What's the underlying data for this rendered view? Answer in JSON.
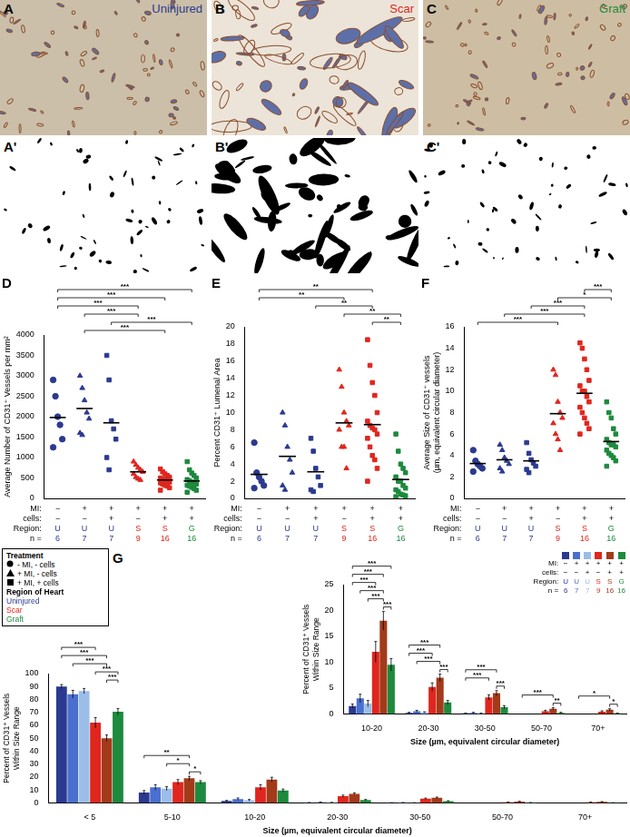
{
  "images": [
    {
      "letter": "A",
      "label": "Uninjured",
      "color": "#2b3a8f"
    },
    {
      "letter": "B",
      "label": "Scar",
      "color": "#e0261e"
    },
    {
      "letter": "C",
      "label": "Graft",
      "color": "#1d8a3e"
    },
    {
      "letter": "A'"
    },
    {
      "letter": "B'"
    },
    {
      "letter": "C'"
    }
  ],
  "treatment_legend": {
    "title": "Treatment",
    "items": [
      {
        "marker": "circle",
        "label": "- MI, - cells"
      },
      {
        "marker": "triangle",
        "label": "+ MI, - cells"
      },
      {
        "marker": "rect",
        "label": "+ MI, + cells"
      }
    ]
  },
  "region_legend": {
    "title": "Region of Heart",
    "items": [
      {
        "label": "Uninjured",
        "color": "#2b3a8f"
      },
      {
        "label": "Scar",
        "color": "#e0261e"
      },
      {
        "label": "Graft",
        "color": "#1d8a3e"
      }
    ]
  },
  "chart_data": [
    {
      "letter": "D",
      "type": "dot",
      "tick_labels": "y",
      "y_label": "Average Number of CD31⁺ Vessels per mm²",
      "ylim": [
        0,
        4000
      ],
      "yticks": [
        0,
        500,
        1000,
        1500,
        2000,
        2500,
        3000,
        3500,
        4000
      ],
      "series": [
        {
          "color": "#2b3a8f",
          "marker": "circle",
          "values": [
            2900,
            2500,
            2000,
            1800,
            1450,
            1250
          ],
          "mean": 1980
        },
        {
          "color": "#2b3a8f",
          "marker": "triangle",
          "values": [
            3000,
            2700,
            2400,
            2100,
            1950,
            1600,
            1550
          ],
          "mean": 2200
        },
        {
          "color": "#2b3a8f",
          "marker": "rect",
          "values": [
            3500,
            2900,
            1900,
            1700,
            1450,
            1000,
            700
          ],
          "mean": 1850
        },
        {
          "color": "#e0261e",
          "marker": "triangle",
          "values": [
            900,
            820,
            750,
            700,
            650,
            600,
            520,
            480,
            450
          ],
          "mean": 650
        },
        {
          "color": "#e0261e",
          "marker": "rect",
          "values": [
            720,
            650,
            600,
            560,
            520,
            500,
            480,
            450,
            430,
            400,
            380,
            350,
            320,
            300,
            260,
            200
          ],
          "mean": 450
        },
        {
          "color": "#1d8a3e",
          "marker": "rect",
          "values": [
            900,
            700,
            620,
            560,
            500,
            460,
            430,
            400,
            380,
            350,
            320,
            300,
            270,
            240,
            200,
            150
          ],
          "mean": 425
        }
      ],
      "table": [
        {
          "label": "MI:",
          "cells": [
            "−",
            "+",
            "+",
            "+",
            "+",
            "+"
          ]
        },
        {
          "label": "cells:",
          "cells": [
            "−",
            "−",
            "+",
            "−",
            "+",
            "+"
          ]
        },
        {
          "label": "Region:",
          "cells": [
            "U",
            "U",
            "U",
            "S",
            "S",
            "G"
          ]
        },
        {
          "label": "n =",
          "cells": [
            6,
            7,
            7,
            9,
            16,
            16
          ]
        }
      ],
      "significance": [
        {
          "from": 1,
          "to": 4,
          "label": "***"
        },
        {
          "from": 2,
          "to": 5,
          "label": "***"
        },
        {
          "from": 1,
          "to": 3,
          "label": "***"
        },
        {
          "from": 0,
          "to": 3,
          "label": "***"
        },
        {
          "from": 0,
          "to": 4,
          "label": "***"
        },
        {
          "from": 0,
          "to": 5,
          "label": "***"
        }
      ]
    },
    {
      "letter": "E",
      "type": "dot",
      "tick_labels": "y",
      "y_label": "Percent CD31⁺ Lumenal Area",
      "ylim": [
        0,
        20
      ],
      "yticks": [
        0,
        2,
        4,
        6,
        8,
        10,
        12,
        14,
        16,
        18,
        20
      ],
      "series": [
        {
          "color": "#2b3a8f",
          "marker": "circle",
          "values": [
            6.5,
            3,
            2.5,
            2,
            1.5,
            1.2
          ],
          "mean": 2.8
        },
        {
          "color": "#2b3a8f",
          "marker": "triangle",
          "values": [
            10,
            8.5,
            6,
            4.5,
            3,
            1.5,
            1
          ],
          "mean": 4.9
        },
        {
          "color": "#2b3a8f",
          "marker": "rect",
          "values": [
            7,
            5.5,
            3.5,
            2.5,
            1.5,
            1,
            0.8
          ],
          "mean": 3.1
        },
        {
          "color": "#e0261e",
          "marker": "triangle",
          "values": [
            15,
            13,
            10,
            9,
            8.5,
            8,
            6,
            6,
            3.5
          ],
          "mean": 8.8
        },
        {
          "color": "#e0261e",
          "marker": "rect",
          "values": [
            18.5,
            15.5,
            13.5,
            12,
            10,
            9,
            8.5,
            8.2,
            8,
            7.5,
            7,
            6,
            5,
            4.5,
            3.5,
            2
          ],
          "mean": 8.6
        },
        {
          "color": "#1d8a3e",
          "marker": "rect",
          "values": [
            7.5,
            5.5,
            4,
            3.5,
            3,
            2.5,
            2,
            2,
            1.5,
            1.2,
            1,
            0.8,
            0.5,
            0.4,
            0.3,
            0.2
          ],
          "mean": 2.2
        }
      ],
      "table": [
        {
          "label": "MI:",
          "cells": [
            "−",
            "+",
            "+",
            "+",
            "+",
            "+"
          ]
        },
        {
          "label": "cells:",
          "cells": [
            "−",
            "−",
            "+",
            "−",
            "+",
            "+"
          ]
        },
        {
          "label": "Region:",
          "cells": [
            "U",
            "U",
            "U",
            "S",
            "S",
            "G"
          ]
        },
        {
          "label": "n =",
          "cells": [
            6,
            7,
            7,
            9,
            16,
            16
          ]
        }
      ],
      "significance": [
        {
          "from": 4,
          "to": 5,
          "label": "**"
        },
        {
          "from": 3,
          "to": 5,
          "label": "**"
        },
        {
          "from": 2,
          "to": 4,
          "label": "**"
        },
        {
          "from": 0,
          "to": 3,
          "label": "**"
        },
        {
          "from": 0,
          "to": 4,
          "label": "**"
        }
      ]
    },
    {
      "letter": "F",
      "type": "dot",
      "tick_labels": "y",
      "y_label": "Average Size of CD31⁺ vessels (µm, equivalent circular diameter)",
      "ylim": [
        0,
        16
      ],
      "yticks": [
        0,
        2,
        4,
        6,
        8,
        10,
        12,
        14,
        16
      ],
      "series": [
        {
          "color": "#2b3a8f",
          "marker": "circle",
          "values": [
            4.5,
            3.5,
            3.2,
            3,
            2.8,
            2.5
          ],
          "mean": 3.25
        },
        {
          "color": "#2b3a8f",
          "marker": "triangle",
          "values": [
            5,
            4.5,
            3.8,
            3.5,
            3.2,
            2.8,
            2.5
          ],
          "mean": 3.6
        },
        {
          "color": "#2b3a8f",
          "marker": "rect",
          "values": [
            5.2,
            4.2,
            3.6,
            3.3,
            3,
            2.7,
            2.4
          ],
          "mean": 3.5
        },
        {
          "color": "#e0261e",
          "marker": "triangle",
          "values": [
            12,
            11.5,
            9,
            8,
            7.5,
            7,
            6,
            5.5,
            4.5
          ],
          "mean": 7.9
        },
        {
          "color": "#e0261e",
          "marker": "rect",
          "values": [
            14.5,
            14,
            13,
            12,
            11,
            10.5,
            10,
            10,
            9.5,
            9,
            8.5,
            8,
            7.5,
            7,
            6.5,
            6
          ],
          "mean": 9.8
        },
        {
          "color": "#1d8a3e",
          "marker": "rect",
          "values": [
            9,
            8,
            7.5,
            6.5,
            6,
            5.5,
            5.2,
            5,
            5,
            4.8,
            4.5,
            4.2,
            4,
            3.8,
            3.5,
            3
          ],
          "mean": 5.3
        }
      ],
      "table": [
        {
          "label": "MI:",
          "cells": [
            "−",
            "+",
            "+",
            "+",
            "+",
            "+"
          ]
        },
        {
          "label": "cells:",
          "cells": [
            "−",
            "−",
            "+",
            "−",
            "+",
            "+"
          ]
        },
        {
          "label": "Region:",
          "cells": [
            "U",
            "U",
            "U",
            "S",
            "S",
            "G"
          ]
        },
        {
          "label": "n =",
          "cells": [
            6,
            7,
            7,
            9,
            16,
            16
          ]
        }
      ],
      "significance": [
        {
          "from": 0,
          "to": 3,
          "label": "***"
        },
        {
          "from": 1,
          "to": 4,
          "label": "***"
        },
        {
          "from": 2,
          "to": 4,
          "label": "***"
        },
        {
          "from": 3,
          "to": 5,
          "label": "*"
        },
        {
          "from": 4,
          "to": 5,
          "label": "***"
        }
      ]
    },
    {
      "letter": "G",
      "type": "bar",
      "y_label": "Percent of CD31⁺ Vessels Within Size Range",
      "x_label": "Size (µm, equivalent circular diameter)",
      "categories": [
        "< 5",
        "5-10",
        "10-20",
        "20-30",
        "30-50",
        "50-70",
        "70+"
      ],
      "ylim": [
        0,
        100
      ],
      "yticks": [
        0,
        10,
        20,
        30,
        40,
        50,
        60,
        70,
        80,
        90,
        100
      ],
      "series": [
        {
          "color": "#2b3990",
          "values": [
            90,
            8,
            1.5,
            0.2,
            0.1,
            0,
            0
          ],
          "errors": [
            1.5,
            1.5,
            0.4,
            0.1,
            0.05,
            0,
            0
          ]
        },
        {
          "color": "#4a6fcf",
          "values": [
            84,
            12,
            3,
            0.5,
            0.2,
            0,
            0
          ],
          "errors": [
            3,
            2,
            0.8,
            0.2,
            0.1,
            0,
            0
          ]
        },
        {
          "color": "#9bbde8",
          "values": [
            86.5,
            11,
            2,
            0.3,
            0.1,
            0,
            0
          ],
          "errors": [
            2,
            1.5,
            0.6,
            0.1,
            0.05,
            0,
            0
          ]
        },
        {
          "color": "#e0261e",
          "values": [
            62,
            16,
            12,
            5.2,
            3.2,
            0.5,
            0.4
          ],
          "errors": [
            4,
            2,
            2,
            0.8,
            0.5,
            0.2,
            0.2
          ]
        },
        {
          "color": "#a33a1a",
          "values": [
            50,
            19,
            18,
            7,
            4,
            1,
            0.8
          ],
          "errors": [
            2.5,
            1.5,
            1.8,
            0.7,
            0.5,
            0.2,
            0.2
          ]
        },
        {
          "color": "#1d8a3e",
          "values": [
            70.5,
            16,
            9.5,
            2.2,
            1.3,
            0.2,
            0.1
          ],
          "errors": [
            2.5,
            1.2,
            1.2,
            0.4,
            0.3,
            0.1,
            0.05
          ]
        }
      ],
      "significance": [
        {
          "category": 0,
          "from": 4,
          "to": 5,
          "label": "***"
        },
        {
          "category": 0,
          "from": 3,
          "to": 5,
          "label": "***"
        },
        {
          "category": 0,
          "from": 1,
          "to": 4,
          "label": "***"
        },
        {
          "category": 0,
          "from": 0,
          "to": 4,
          "label": "***"
        },
        {
          "category": 0,
          "from": 0,
          "to": 3,
          "label": "***"
        },
        {
          "category": 1,
          "from": 4,
          "to": 5,
          "label": "*"
        },
        {
          "category": 1,
          "from": 2,
          "to": 4,
          "label": "*"
        },
        {
          "category": 1,
          "from": 0,
          "to": 4,
          "label": "**"
        }
      ]
    },
    {
      "type": "bar",
      "y_label": "Percent of CD31⁺ Vessels Within Size Range",
      "x_label": "Size (µm, equivalent circular diameter)",
      "categories": [
        "10-20",
        "20-30",
        "30-50",
        "50-70",
        "70+"
      ],
      "ylim": [
        0,
        25
      ],
      "yticks": [
        0,
        5,
        10,
        15,
        20,
        25
      ],
      "series": [
        {
          "color": "#2b3990",
          "values": [
            1.5,
            0.2,
            0.1,
            0,
            0
          ],
          "errors": [
            0.4,
            0.1,
            0.05,
            0,
            0
          ]
        },
        {
          "color": "#4a6fcf",
          "values": [
            3,
            0.5,
            0.2,
            0,
            0
          ],
          "errors": [
            0.8,
            0.2,
            0.1,
            0,
            0
          ]
        },
        {
          "color": "#9bbde8",
          "values": [
            2,
            0.3,
            0.1,
            0,
            0
          ],
          "errors": [
            0.6,
            0.1,
            0.05,
            0,
            0
          ]
        },
        {
          "color": "#e0261e",
          "values": [
            12,
            5.2,
            3.2,
            0.5,
            0.4
          ],
          "errors": [
            2,
            0.8,
            0.5,
            0.2,
            0.2
          ]
        },
        {
          "color": "#a33a1a",
          "values": [
            18,
            7,
            4,
            1,
            0.8
          ],
          "errors": [
            1.8,
            0.7,
            0.5,
            0.2,
            0.2
          ]
        },
        {
          "color": "#1d8a3e",
          "values": [
            9.5,
            2.2,
            1.3,
            0.2,
            0.1
          ],
          "errors": [
            1.2,
            0.4,
            0.3,
            0.1,
            0.05
          ]
        }
      ],
      "table": [
        {
          "label": "MI:",
          "cells": [
            "−",
            "+",
            "+",
            "+",
            "+",
            "+"
          ]
        },
        {
          "label": "cells:",
          "cells": [
            "−",
            "−",
            "+",
            "−",
            "+",
            "+"
          ]
        },
        {
          "label": "Region:",
          "cells": [
            "U",
            "U",
            "U",
            "S",
            "S",
            "G"
          ]
        },
        {
          "label": "n =",
          "cells": [
            6,
            7,
            7,
            9,
            16,
            16
          ]
        }
      ],
      "significance": [
        {
          "category": 0,
          "from": 4,
          "to": 5,
          "label": "***"
        },
        {
          "category": 0,
          "from": 2,
          "to": 4,
          "label": "***"
        },
        {
          "category": 0,
          "from": 1,
          "to": 4,
          "label": "***"
        },
        {
          "category": 0,
          "from": 0,
          "to": 3,
          "label": "***"
        },
        {
          "category": 0,
          "from": 0,
          "to": 4,
          "label": "***"
        },
        {
          "category": 0,
          "from": 0,
          "to": 5,
          "label": "***"
        },
        {
          "category": 1,
          "from": 4,
          "to": 5,
          "label": "***"
        },
        {
          "category": 1,
          "from": 1,
          "to": 4,
          "label": "***"
        },
        {
          "category": 1,
          "from": 0,
          "to": 3,
          "label": "***"
        },
        {
          "category": 1,
          "from": 0,
          "to": 4,
          "label": "***"
        },
        {
          "category": 2,
          "from": 4,
          "to": 5,
          "label": "***"
        },
        {
          "category": 2,
          "from": 0,
          "to": 3,
          "label": "***"
        },
        {
          "category": 2,
          "from": 0,
          "to": 4,
          "label": "***"
        },
        {
          "category": 3,
          "from": 4,
          "to": 5,
          "label": "**"
        },
        {
          "category": 3,
          "from": 0,
          "to": 4,
          "label": "***"
        },
        {
          "category": 4,
          "from": 4,
          "to": 5,
          "label": "*"
        },
        {
          "category": 4,
          "from": 0,
          "to": 4,
          "label": "*"
        }
      ]
    }
  ]
}
